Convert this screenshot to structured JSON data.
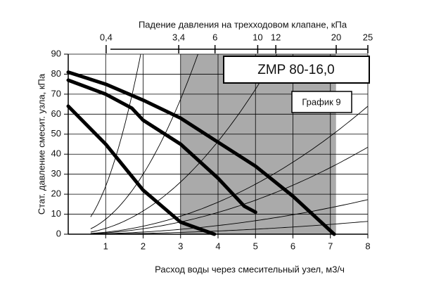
{
  "chart_data": {
    "type": "line",
    "title": "ZMP 80-16,0",
    "subtitle": "График 9",
    "x_label": "Расход воды через смесительный узел, м3/ч",
    "y_label": "Стат. давление смесит. узла, кПа",
    "x2_label": "Падение давления на трехходовом клапане, кПа",
    "xlim": [
      0,
      8
    ],
    "xticks": [
      1,
      2,
      3,
      4,
      5,
      6,
      7,
      8
    ],
    "ylim": [
      0,
      90
    ],
    "yticks": [
      0,
      10,
      20,
      30,
      40,
      50,
      60,
      70,
      80,
      90
    ],
    "x2lim": [
      0,
      25
    ],
    "x2scale": "sqrt",
    "x2ticks": [
      {
        "value": 0.4,
        "label": "0,4"
      },
      {
        "value": 3.4,
        "label": "3,4"
      },
      6,
      10,
      12,
      20,
      25
    ],
    "grid": true,
    "shaded_region": [
      3,
      7.15
    ],
    "shaded_color": "#aaaaaa",
    "system_curves": [
      24,
      7.5,
      2.9,
      1.0,
      0.68,
      0.27,
      0.1
    ],
    "series": [
      {
        "color": "#000000",
        "x": [
          0,
          1,
          2,
          3,
          4,
          5,
          6,
          7.1
        ],
        "values": [
          81,
          75,
          67,
          58,
          46,
          34,
          19,
          0
        ]
      },
      {
        "color": "#000000",
        "x": [
          0,
          1,
          1.7,
          2,
          3,
          4,
          4.7,
          5
        ],
        "values": [
          77,
          70,
          63,
          57,
          45,
          28,
          14,
          11
        ]
      },
      {
        "color": "#000000",
        "x": [
          0,
          1,
          2,
          3,
          3.9
        ],
        "values": [
          64,
          45,
          22,
          6,
          0
        ]
      }
    ]
  }
}
